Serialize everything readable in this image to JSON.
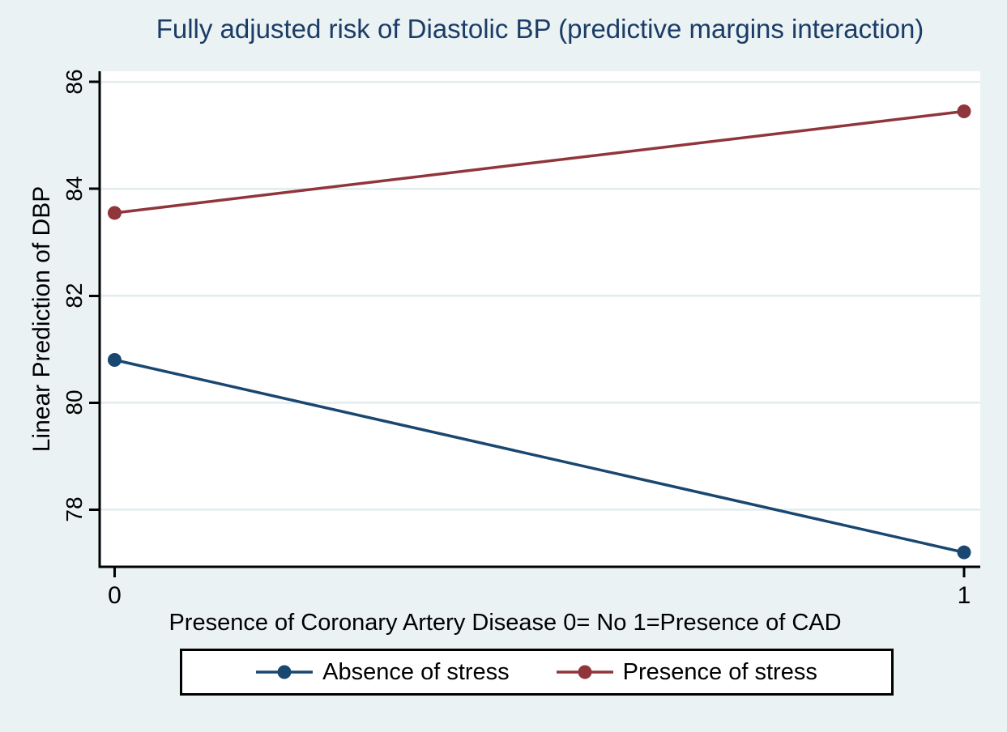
{
  "chart_data": {
    "type": "line",
    "title": "Fully adjusted risk of Diastolic BP (predictive margins interaction)",
    "title_color": "#1b3c66",
    "xlabel": "Presence of Coronary Artery Disease 0= No 1=Presence of CAD",
    "ylabel": "Linear Prediction of DBP",
    "x": [
      0,
      1
    ],
    "series": [
      {
        "name": "Absence of stress",
        "color": "#1a476f",
        "values": [
          80.8,
          77.2
        ]
      },
      {
        "name": "Presence of stress",
        "color": "#90353b",
        "values": [
          83.55,
          85.45
        ]
      }
    ],
    "xticks": [
      0,
      1
    ],
    "xtick_labels": [
      "0",
      "1"
    ],
    "yticks": [
      78,
      80,
      82,
      84,
      86
    ],
    "ytick_labels": [
      "78",
      "80",
      "82",
      "84",
      "86"
    ],
    "xlim": [
      -0.0176,
      1.0191
    ],
    "ylim": [
      76.93,
      86.2
    ],
    "grid": "horizontal",
    "grid_color": "#e2ecef",
    "axis_color": "#000000",
    "plot_bg": "#ffffff",
    "page_bg": "#eaf2f3",
    "legend_position": "bottom",
    "legend_bg": "#ffffff",
    "legend_border_color": "#000000"
  }
}
